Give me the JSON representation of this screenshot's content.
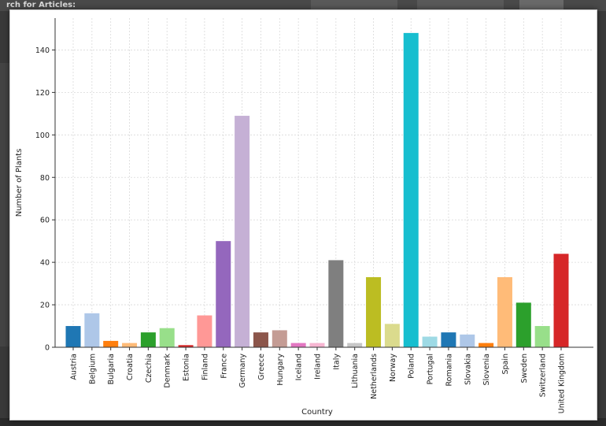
{
  "background": {
    "header_text": "rch for Articles:"
  },
  "chart_data": {
    "type": "bar",
    "xlabel": "Country",
    "ylabel": "Number of Plants",
    "ylim": [
      0,
      155
    ],
    "yticks": [
      0,
      20,
      40,
      60,
      80,
      100,
      120,
      140
    ],
    "grid": true,
    "categories": [
      "Austria",
      "Belgium",
      "Bulgaria",
      "Croatia",
      "Czechia",
      "Denmark",
      "Estonia",
      "Finland",
      "France",
      "Germany",
      "Greece",
      "Hungary",
      "Iceland",
      "Ireland",
      "Italy",
      "Lithuania",
      "Netherlands",
      "Norway",
      "Poland",
      "Portugal",
      "Romania",
      "Slovakia",
      "Slovenia",
      "Spain",
      "Sweden",
      "Switzerland",
      "United Kingdom"
    ],
    "values": [
      10,
      16,
      3,
      2,
      7,
      9,
      1,
      15,
      50,
      109,
      7,
      8,
      2,
      2,
      41,
      2,
      33,
      11,
      148,
      5,
      7,
      6,
      2,
      33,
      21,
      10,
      44
    ],
    "colors": [
      "#1f77b4",
      "#aec7e8",
      "#ff7f0e",
      "#ffbb78",
      "#2ca02c",
      "#98df8a",
      "#d62728",
      "#ff9896",
      "#9467bd",
      "#c5b0d5",
      "#8c564b",
      "#c49c94",
      "#e377c2",
      "#f7b6d2",
      "#7f7f7f",
      "#c7c7c7",
      "#bcbd22",
      "#dbdb8d",
      "#17becf",
      "#9edae5",
      "#1f77b4",
      "#aec7e8",
      "#ff7f0e",
      "#ffbb78",
      "#2ca02c",
      "#98df8a",
      "#d62728"
    ]
  }
}
